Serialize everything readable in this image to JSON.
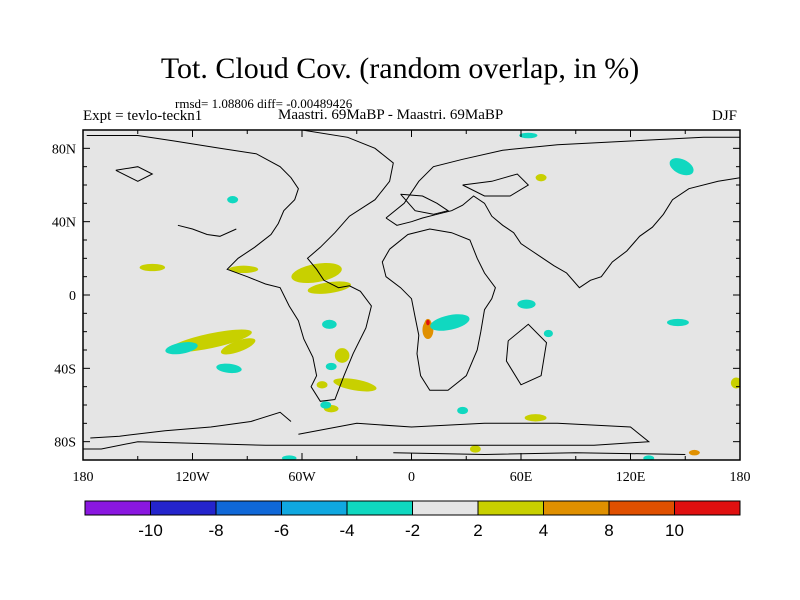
{
  "header": {
    "title": "Tot. Cloud Cov. (random overlap, in %)",
    "stats": "rmsd= 1.08806 diff= -0.00489426",
    "experiment": "Expt = tevlo-teckn1",
    "comparison": "Maastri. 69MaBP - Maastri. 69MaBP",
    "season": "DJF"
  },
  "chart_data": {
    "type": "heatmap",
    "title": "Tot. Cloud Cov. (random overlap, in %)",
    "projection": "cylindrical equidistant",
    "xlim": [
      -180,
      180
    ],
    "ylim": [
      -90,
      90
    ],
    "x_ticks": [
      {
        "value": -180,
        "label": "180"
      },
      {
        "value": -120,
        "label": "120W"
      },
      {
        "value": -60,
        "label": "60W"
      },
      {
        "value": 0,
        "label": "0"
      },
      {
        "value": 60,
        "label": "60E"
      },
      {
        "value": 120,
        "label": "120E"
      },
      {
        "value": 180,
        "label": "180"
      }
    ],
    "y_ticks": [
      {
        "value": 80,
        "label": "80N"
      },
      {
        "value": 40,
        "label": "40N"
      },
      {
        "value": 0,
        "label": "0"
      },
      {
        "value": -40,
        "label": "40S"
      },
      {
        "value": -80,
        "label": "80S"
      }
    ],
    "background_color": "#e5e5e5",
    "colorbar": {
      "levels": [
        -10,
        -8,
        -6,
        -4,
        -2,
        2,
        4,
        8,
        10
      ],
      "level_labels": [
        "-10",
        "-8",
        "-6",
        "-4",
        "-2",
        "2",
        "4",
        "8",
        "10"
      ],
      "colors": [
        "#8a17e0",
        "#2424cc",
        "#1068d8",
        "#10a8e0",
        "#10d8c0",
        "#e5e5e5",
        "#c8d000",
        "#e09000",
        "#e05000",
        "#e01010"
      ]
    },
    "anomalies": [
      {
        "lon": -142,
        "lat": 15,
        "rlon": 7,
        "rlat": 2,
        "value": 3
      },
      {
        "lon": -92,
        "lat": 14,
        "rlon": 8,
        "rlat": 2,
        "value": 3
      },
      {
        "lon": -52,
        "lat": 12,
        "rlon": 14,
        "rlat": 5,
        "rot": 10,
        "value": 3
      },
      {
        "lon": -45,
        "lat": 4,
        "rlon": 12,
        "rlat": 3,
        "rot": 8,
        "value": 3
      },
      {
        "lon": -110,
        "lat": -25,
        "rlon": 23,
        "rlat": 4,
        "rot": 12,
        "value": 3
      },
      {
        "lon": -95,
        "lat": -28,
        "rlon": 10,
        "rlat": 3,
        "rot": 20,
        "value": 3
      },
      {
        "lon": -38,
        "lat": -33,
        "rlon": 4,
        "rlat": 4,
        "value": 3
      },
      {
        "lon": -31,
        "lat": -49,
        "rlon": 12,
        "rlat": 3,
        "rot": -10,
        "value": 3
      },
      {
        "lon": -44,
        "lat": -62,
        "rlon": 4,
        "rlat": 2,
        "value": 3
      },
      {
        "lon": -49,
        "lat": -49,
        "rlon": 3,
        "rlat": 2,
        "value": 3
      },
      {
        "lon": 68,
        "lat": -67,
        "rlon": 6,
        "rlat": 2,
        "value": 3
      },
      {
        "lon": 35,
        "lat": -84,
        "rlon": 3,
        "rlat": 2,
        "value": 3
      },
      {
        "lon": 178,
        "lat": -48,
        "rlon": 3,
        "rlat": 3,
        "value": 3
      },
      {
        "lon": 71,
        "lat": 64,
        "rlon": 3,
        "rlat": 2,
        "value": 3
      },
      {
        "lon": 9,
        "lat": -19,
        "rlon": 3,
        "rlat": 5,
        "value": 4
      },
      {
        "lon": 9,
        "lat": -16,
        "rlon": 2,
        "rlat": 3,
        "value": 7
      },
      {
        "lon": 9,
        "lat": -15,
        "rlon": 1,
        "rlat": 1.5,
        "value": 11
      },
      {
        "lon": 155,
        "lat": -86,
        "rlon": 3,
        "rlat": 1.5,
        "value": 6
      },
      {
        "lon": -126,
        "lat": -29,
        "rlon": 9,
        "rlat": 3,
        "rot": 10,
        "value": -3
      },
      {
        "lon": -100,
        "lat": -40,
        "rlon": 7,
        "rlat": 2.5,
        "rot": -6,
        "value": -3
      },
      {
        "lon": -45,
        "lat": -16,
        "rlon": 4,
        "rlat": 2.5,
        "value": -3
      },
      {
        "lon": -44,
        "lat": -39,
        "rlon": 3,
        "rlat": 2,
        "value": -3
      },
      {
        "lon": -47,
        "lat": -60,
        "rlon": 3,
        "rlat": 2,
        "value": -3
      },
      {
        "lon": 21,
        "lat": -15,
        "rlon": 11,
        "rlat": 4,
        "rot": 12,
        "value": -3
      },
      {
        "lon": 63,
        "lat": -5,
        "rlon": 5,
        "rlat": 2.5,
        "value": -3
      },
      {
        "lon": 75,
        "lat": -21,
        "rlon": 2.5,
        "rlat": 2,
        "value": -3
      },
      {
        "lon": 146,
        "lat": -15,
        "rlon": 6,
        "rlat": 2,
        "value": -3
      },
      {
        "lon": 148,
        "lat": 70,
        "rlon": 7,
        "rlat": 4,
        "rot": -25,
        "value": -3
      },
      {
        "lon": 64,
        "lat": 87,
        "rlon": 5,
        "rlat": 1.5,
        "value": -3
      },
      {
        "lon": -67,
        "lat": -89,
        "rlon": 4,
        "rlat": 1.5,
        "value": -3
      },
      {
        "lon": 130,
        "lat": -89,
        "rlon": 3,
        "rlat": 1.5,
        "value": -3
      },
      {
        "lon": -98,
        "lat": 52,
        "rlon": 3,
        "rlat": 2,
        "value": -3
      },
      {
        "lon": 28,
        "lat": -63,
        "rlon": 3,
        "rlat": 2,
        "value": -3
      }
    ],
    "coastlines": [
      [
        [
          -178,
          87
        ],
        [
          -150,
          87
        ],
        [
          -130,
          84
        ],
        [
          -105,
          80
        ],
        [
          -85,
          77
        ],
        [
          -72,
          70
        ],
        [
          -66,
          64
        ],
        [
          -62,
          58
        ],
        [
          -64,
          52
        ],
        [
          -70,
          46
        ],
        [
          -73,
          39
        ],
        [
          -77,
          33
        ],
        [
          -86,
          26
        ],
        [
          -95,
          20
        ],
        [
          -101,
          14
        ],
        [
          -90,
          10
        ],
        [
          -80,
          6
        ],
        [
          -72,
          4
        ],
        [
          -67,
          -6
        ],
        [
          -62,
          -14
        ],
        [
          -59,
          -24
        ],
        [
          -54,
          -34
        ],
        [
          -52,
          -44
        ],
        [
          -55,
          -50
        ],
        [
          -50,
          -58
        ],
        [
          -42,
          -57
        ],
        [
          -37,
          -44
        ],
        [
          -32,
          -32
        ],
        [
          -25,
          -18
        ],
        [
          -22,
          -6
        ],
        [
          -28,
          2
        ],
        [
          -34,
          5
        ],
        [
          -40,
          4
        ],
        [
          -48,
          8
        ],
        [
          -52,
          14
        ],
        [
          -57,
          20
        ],
        [
          -50,
          26
        ],
        [
          -42,
          34
        ],
        [
          -34,
          43
        ],
        [
          -20,
          52
        ],
        [
          -12,
          62
        ],
        [
          -10,
          72
        ],
        [
          -20,
          80
        ],
        [
          -35,
          86
        ],
        [
          -60,
          90
        ],
        [
          -120,
          90
        ],
        [
          -178,
          90
        ]
      ],
      [
        [
          -14,
          42
        ],
        [
          -4,
          50
        ],
        [
          4,
          62
        ],
        [
          12,
          70
        ],
        [
          28,
          74
        ],
        [
          50,
          79
        ],
        [
          80,
          82
        ],
        [
          120,
          84
        ],
        [
          160,
          86
        ],
        [
          180,
          86
        ],
        [
          180,
          64
        ],
        [
          168,
          62
        ],
        [
          152,
          58
        ],
        [
          143,
          52
        ],
        [
          138,
          44
        ],
        [
          132,
          37
        ],
        [
          125,
          32
        ],
        [
          118,
          24
        ],
        [
          110,
          18
        ],
        [
          104,
          10
        ],
        [
          98,
          8
        ],
        [
          92,
          4
        ],
        [
          85,
          12
        ],
        [
          78,
          16
        ],
        [
          72,
          20
        ],
        [
          66,
          24
        ],
        [
          60,
          28
        ],
        [
          56,
          34
        ],
        [
          50,
          38
        ],
        [
          44,
          43
        ],
        [
          40,
          50
        ],
        [
          34,
          54
        ],
        [
          28,
          49
        ],
        [
          22,
          46
        ],
        [
          14,
          44
        ],
        [
          6,
          42
        ],
        [
          0,
          40
        ],
        [
          -8,
          38
        ],
        [
          -14,
          42
        ]
      ],
      [
        [
          -12,
          25
        ],
        [
          -2,
          33
        ],
        [
          10,
          36
        ],
        [
          22,
          34
        ],
        [
          32,
          30
        ],
        [
          36,
          20
        ],
        [
          40,
          12
        ],
        [
          46,
          4
        ],
        [
          44,
          -2
        ],
        [
          40,
          -8
        ],
        [
          38,
          -20
        ],
        [
          36,
          -30
        ],
        [
          30,
          -44
        ],
        [
          20,
          -52
        ],
        [
          10,
          -52
        ],
        [
          5,
          -44
        ],
        [
          3,
          -32
        ],
        [
          4,
          -22
        ],
        [
          2,
          -12
        ],
        [
          0,
          -2
        ],
        [
          -6,
          4
        ],
        [
          -14,
          10
        ],
        [
          -16,
          18
        ],
        [
          -12,
          25
        ]
      ],
      [
        [
          53,
          -25
        ],
        [
          64,
          -16
        ],
        [
          74,
          -26
        ],
        [
          71,
          -44
        ],
        [
          60,
          -49
        ],
        [
          52,
          -36
        ],
        [
          53,
          -25
        ]
      ],
      [
        [
          -62,
          -76
        ],
        [
          -30,
          -70
        ],
        [
          0,
          -72
        ],
        [
          40,
          -70
        ],
        [
          80,
          -70
        ],
        [
          120,
          -72
        ],
        [
          130,
          -80
        ],
        [
          100,
          -82
        ],
        [
          40,
          -82
        ],
        [
          -20,
          -82
        ],
        [
          -80,
          -82
        ],
        [
          -150,
          -80
        ],
        [
          -170,
          -84
        ],
        [
          -180,
          -84
        ]
      ],
      [
        [
          -176,
          -78
        ],
        [
          -160,
          -77
        ],
        [
          -135,
          -74
        ],
        [
          -110,
          -72
        ],
        [
          -88,
          -69
        ],
        [
          -72,
          -64
        ],
        [
          -66,
          -69
        ]
      ],
      [
        [
          -6,
          55
        ],
        [
          6,
          54
        ],
        [
          14,
          50
        ],
        [
          20,
          46
        ],
        [
          12,
          44
        ],
        [
          2,
          46
        ],
        [
          -6,
          55
        ]
      ],
      [
        [
          28,
          60
        ],
        [
          44,
          62
        ],
        [
          58,
          66
        ],
        [
          64,
          60
        ],
        [
          54,
          54
        ],
        [
          40,
          54
        ],
        [
          28,
          60
        ]
      ],
      [
        [
          -162,
          68
        ],
        [
          -150,
          70
        ],
        [
          -142,
          66
        ],
        [
          -150,
          62
        ],
        [
          -162,
          68
        ]
      ],
      [
        [
          -128,
          38
        ],
        [
          -120,
          36
        ],
        [
          -112,
          33
        ],
        [
          -105,
          32
        ],
        [
          -96,
          36
        ]
      ],
      [
        [
          -10,
          -86
        ],
        [
          40,
          -87
        ],
        [
          90,
          -86
        ],
        [
          150,
          -87
        ]
      ]
    ]
  }
}
